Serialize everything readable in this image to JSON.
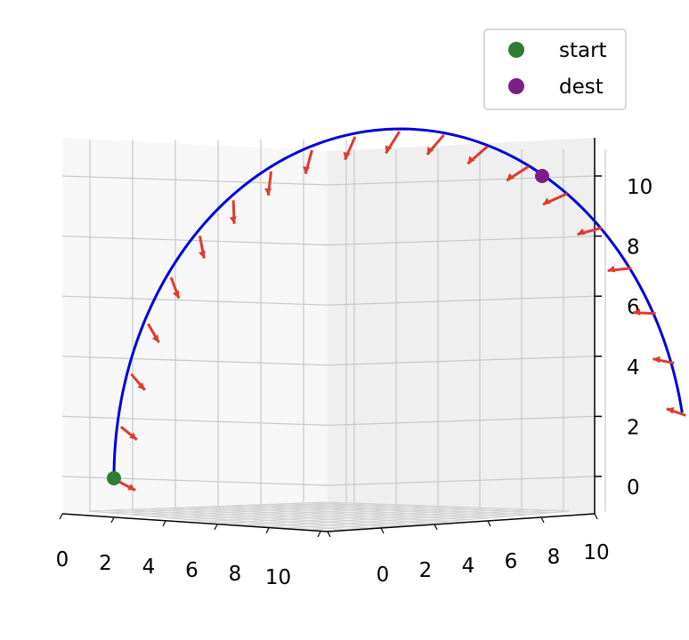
{
  "chart_data": {
    "type": "line3d",
    "x": {
      "ticks": [
        "0",
        "2",
        "4",
        "6",
        "8",
        "10"
      ],
      "lim": [
        0,
        10
      ]
    },
    "y": {
      "ticks": [
        "0",
        "2",
        "4",
        "6",
        "8",
        "10"
      ],
      "lim": [
        0,
        10
      ]
    },
    "z": {
      "ticks": [
        "0",
        "2",
        "4",
        "6",
        "8",
        "10"
      ],
      "lim": [
        0,
        11
      ]
    },
    "grid": true,
    "legend": {
      "position": "top-right",
      "entries": [
        {
          "label": "start",
          "color": "#2e7d32"
        },
        {
          "label": "dest",
          "color": "#7b1f85"
        }
      ]
    },
    "path": {
      "color": "#0000dd",
      "shape": "semicircular arc from start (ground) up over apex to dest (z≈10)"
    },
    "start": {
      "x": 0,
      "y": 0,
      "z": 0
    },
    "dest": {
      "x": 10,
      "y": 10,
      "z": 10
    },
    "vector_color": "#e03a2e",
    "vector_count": 20
  }
}
